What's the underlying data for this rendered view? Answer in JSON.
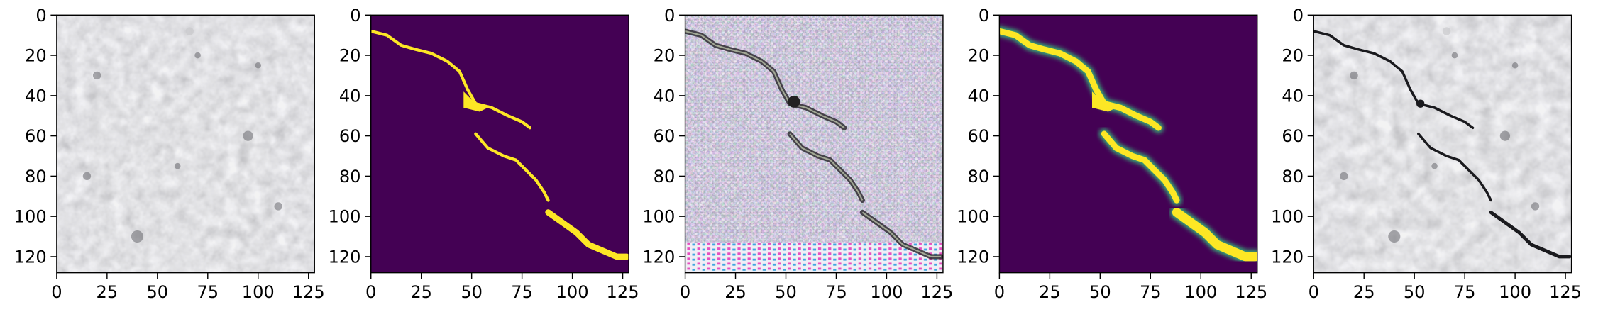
{
  "figure": {
    "panels": [
      {
        "name": "concrete-texture",
        "kind": "photo",
        "xticks": [
          "0",
          "25",
          "50",
          "75",
          "100",
          "125"
        ],
        "yticks": [
          "0",
          "20",
          "40",
          "60",
          "80",
          "100",
          "120"
        ]
      },
      {
        "name": "binary-crack-mask",
        "kind": "mask",
        "xticks": [
          "0",
          "25",
          "50",
          "75",
          "100",
          "125"
        ],
        "yticks": [
          "0",
          "20",
          "40",
          "60",
          "80",
          "100",
          "120"
        ]
      },
      {
        "name": "generated-crack-texture",
        "kind": "generated",
        "xticks": [
          "0",
          "25",
          "50",
          "75",
          "100",
          "125"
        ],
        "yticks": [
          "0",
          "20",
          "40",
          "60",
          "80",
          "100",
          "120"
        ]
      },
      {
        "name": "soft-crack-mask",
        "kind": "softmask",
        "xticks": [
          "0",
          "25",
          "50",
          "75",
          "100",
          "125"
        ],
        "yticks": [
          "0",
          "20",
          "40",
          "60",
          "80",
          "100",
          "120"
        ]
      },
      {
        "name": "blended-crack-result",
        "kind": "blend",
        "xticks": [
          "0",
          "25",
          "50",
          "75",
          "100",
          "125"
        ],
        "yticks": [
          "0",
          "20",
          "40",
          "60",
          "80",
          "100",
          "120"
        ]
      }
    ],
    "axis_range": {
      "x": [
        0,
        128
      ],
      "y": [
        0,
        128
      ]
    },
    "colors": {
      "mask_background": "#440154",
      "mask_crack": "#fde725",
      "mask_edge": "#35b779",
      "concrete_base": "#85868a",
      "axis": "#000000"
    },
    "crack_path": {
      "upper": [
        [
          0,
          8
        ],
        [
          8,
          10
        ],
        [
          15,
          15
        ],
        [
          22,
          17
        ],
        [
          30,
          19
        ],
        [
          38,
          23
        ],
        [
          44,
          28
        ],
        [
          48,
          37
        ],
        [
          52,
          44
        ],
        [
          60,
          46
        ],
        [
          68,
          50
        ],
        [
          75,
          53
        ],
        [
          79,
          56
        ]
      ],
      "lower": [
        [
          52,
          59
        ],
        [
          58,
          66
        ],
        [
          66,
          70
        ],
        [
          72,
          72
        ],
        [
          78,
          78
        ],
        [
          82,
          82
        ],
        [
          86,
          88
        ],
        [
          88,
          92
        ]
      ],
      "tail": [
        [
          88,
          98
        ],
        [
          95,
          103
        ],
        [
          102,
          108
        ],
        [
          108,
          114
        ],
        [
          115,
          117
        ],
        [
          122,
          120
        ],
        [
          127,
          120
        ]
      ]
    }
  }
}
